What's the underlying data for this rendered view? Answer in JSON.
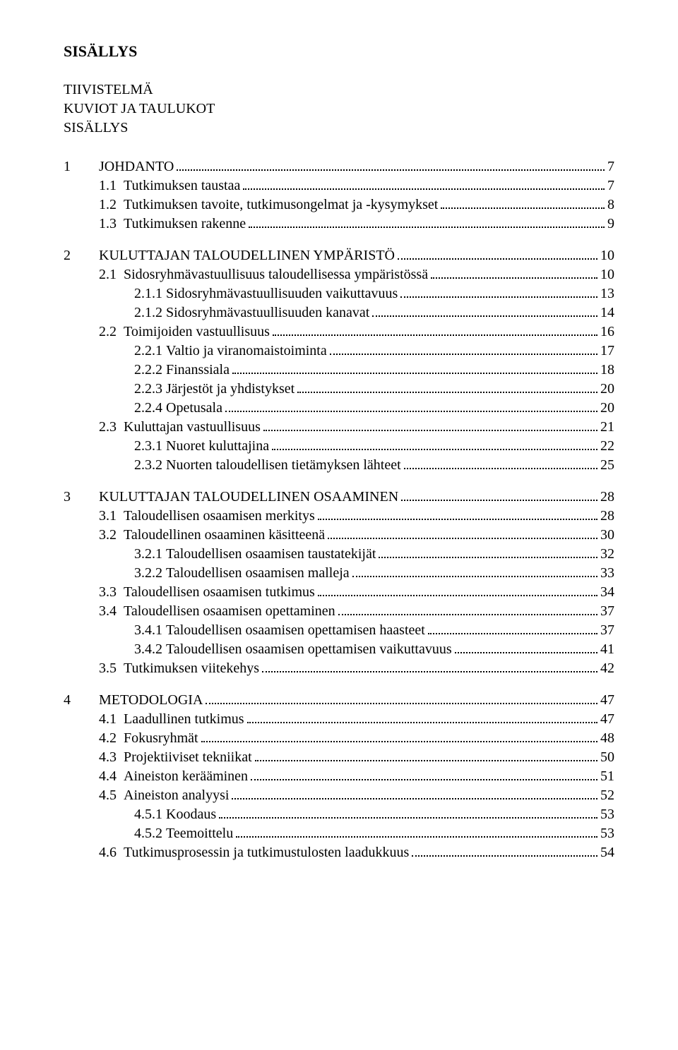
{
  "title": "SISÄLLYS",
  "front_matter": [
    "TIIVISTELMÄ",
    "KUVIOT JA TAULUKOT",
    "SISÄLLYS"
  ],
  "toc": [
    {
      "type": "chap",
      "num": "1",
      "label": "JOHDANTO",
      "page": "7"
    },
    {
      "type": "sec",
      "num": "1.1",
      "label": "Tutkimuksen taustaa",
      "page": "7"
    },
    {
      "type": "sec",
      "num": "1.2",
      "label": "Tutkimuksen tavoite, tutkimusongelmat ja -kysymykset",
      "page": "8"
    },
    {
      "type": "sec",
      "num": "1.3",
      "label": "Tutkimuksen rakenne",
      "page": "9"
    },
    {
      "type": "gap"
    },
    {
      "type": "chap",
      "num": "2",
      "label": "KULUTTAJAN TALOUDELLINEN YMPÄRISTÖ",
      "page": "10"
    },
    {
      "type": "sec",
      "num": "2.1",
      "label": "Sidosryhmävastuullisuus taloudellisessa ympäristössä",
      "page": "10"
    },
    {
      "type": "sub",
      "num": "2.1.1",
      "label": "Sidosryhmävastuullisuuden vaikuttavuus",
      "page": "13"
    },
    {
      "type": "sub",
      "num": "2.1.2",
      "label": "Sidosryhmävastuullisuuden kanavat",
      "page": "14"
    },
    {
      "type": "sec",
      "num": "2.2",
      "label": "Toimijoiden vastuullisuus",
      "page": "16"
    },
    {
      "type": "sub",
      "num": "2.2.1",
      "label": "Valtio ja viranomaistoiminta",
      "page": "17"
    },
    {
      "type": "sub",
      "num": "2.2.2",
      "label": "Finanssiala",
      "page": "18"
    },
    {
      "type": "sub",
      "num": "2.2.3",
      "label": "Järjestöt ja yhdistykset",
      "page": "20"
    },
    {
      "type": "sub",
      "num": "2.2.4",
      "label": "Opetusala",
      "page": "20"
    },
    {
      "type": "sec",
      "num": "2.3",
      "label": "Kuluttajan vastuullisuus",
      "page": "21"
    },
    {
      "type": "sub",
      "num": "2.3.1",
      "label": "Nuoret kuluttajina",
      "page": "22"
    },
    {
      "type": "sub",
      "num": "2.3.2",
      "label": "Nuorten taloudellisen tietämyksen lähteet",
      "page": "25"
    },
    {
      "type": "gap"
    },
    {
      "type": "chap",
      "num": "3",
      "label": "KULUTTAJAN TALOUDELLINEN OSAAMINEN",
      "page": "28"
    },
    {
      "type": "sec",
      "num": "3.1",
      "label": "Taloudellisen osaamisen merkitys",
      "page": "28"
    },
    {
      "type": "sec",
      "num": "3.2",
      "label": "Taloudellinen osaaminen käsitteenä",
      "page": "30"
    },
    {
      "type": "sub",
      "num": "3.2.1",
      "label": "Taloudellisen osaamisen taustatekijät",
      "page": "32"
    },
    {
      "type": "sub",
      "num": "3.2.2",
      "label": "Taloudellisen osaamisen malleja",
      "page": "33"
    },
    {
      "type": "sec",
      "num": "3.3",
      "label": "Taloudellisen osaamisen tutkimus",
      "page": "34"
    },
    {
      "type": "sec",
      "num": "3.4",
      "label": "Taloudellisen osaamisen opettaminen",
      "page": "37"
    },
    {
      "type": "sub",
      "num": "3.4.1",
      "label": "Taloudellisen osaamisen opettamisen haasteet",
      "page": "37"
    },
    {
      "type": "sub",
      "num": "3.4.2",
      "label": "Taloudellisen osaamisen opettamisen vaikuttavuus",
      "page": "41"
    },
    {
      "type": "sec",
      "num": "3.5",
      "label": "Tutkimuksen viitekehys",
      "page": "42"
    },
    {
      "type": "gap"
    },
    {
      "type": "chap",
      "num": "4",
      "label": "METODOLOGIA",
      "page": "47"
    },
    {
      "type": "sec",
      "num": "4.1",
      "label": "Laadullinen tutkimus",
      "page": "47"
    },
    {
      "type": "sec",
      "num": "4.2",
      "label": "Fokusryhmät",
      "page": "48"
    },
    {
      "type": "sec",
      "num": "4.3",
      "label": "Projektiiviset tekniikat",
      "page": "50"
    },
    {
      "type": "sec",
      "num": "4.4",
      "label": "Aineiston kerääminen",
      "page": "51"
    },
    {
      "type": "sec",
      "num": "4.5",
      "label": "Aineiston analyysi",
      "page": "52"
    },
    {
      "type": "sub",
      "num": "4.5.1",
      "label": "Koodaus",
      "page": "53"
    },
    {
      "type": "sub",
      "num": "4.5.2",
      "label": "Teemoittelu",
      "page": "53"
    },
    {
      "type": "sec",
      "num": "4.6",
      "label": "Tutkimusprosessin ja tutkimustulosten laadukkuus",
      "page": "54"
    }
  ]
}
